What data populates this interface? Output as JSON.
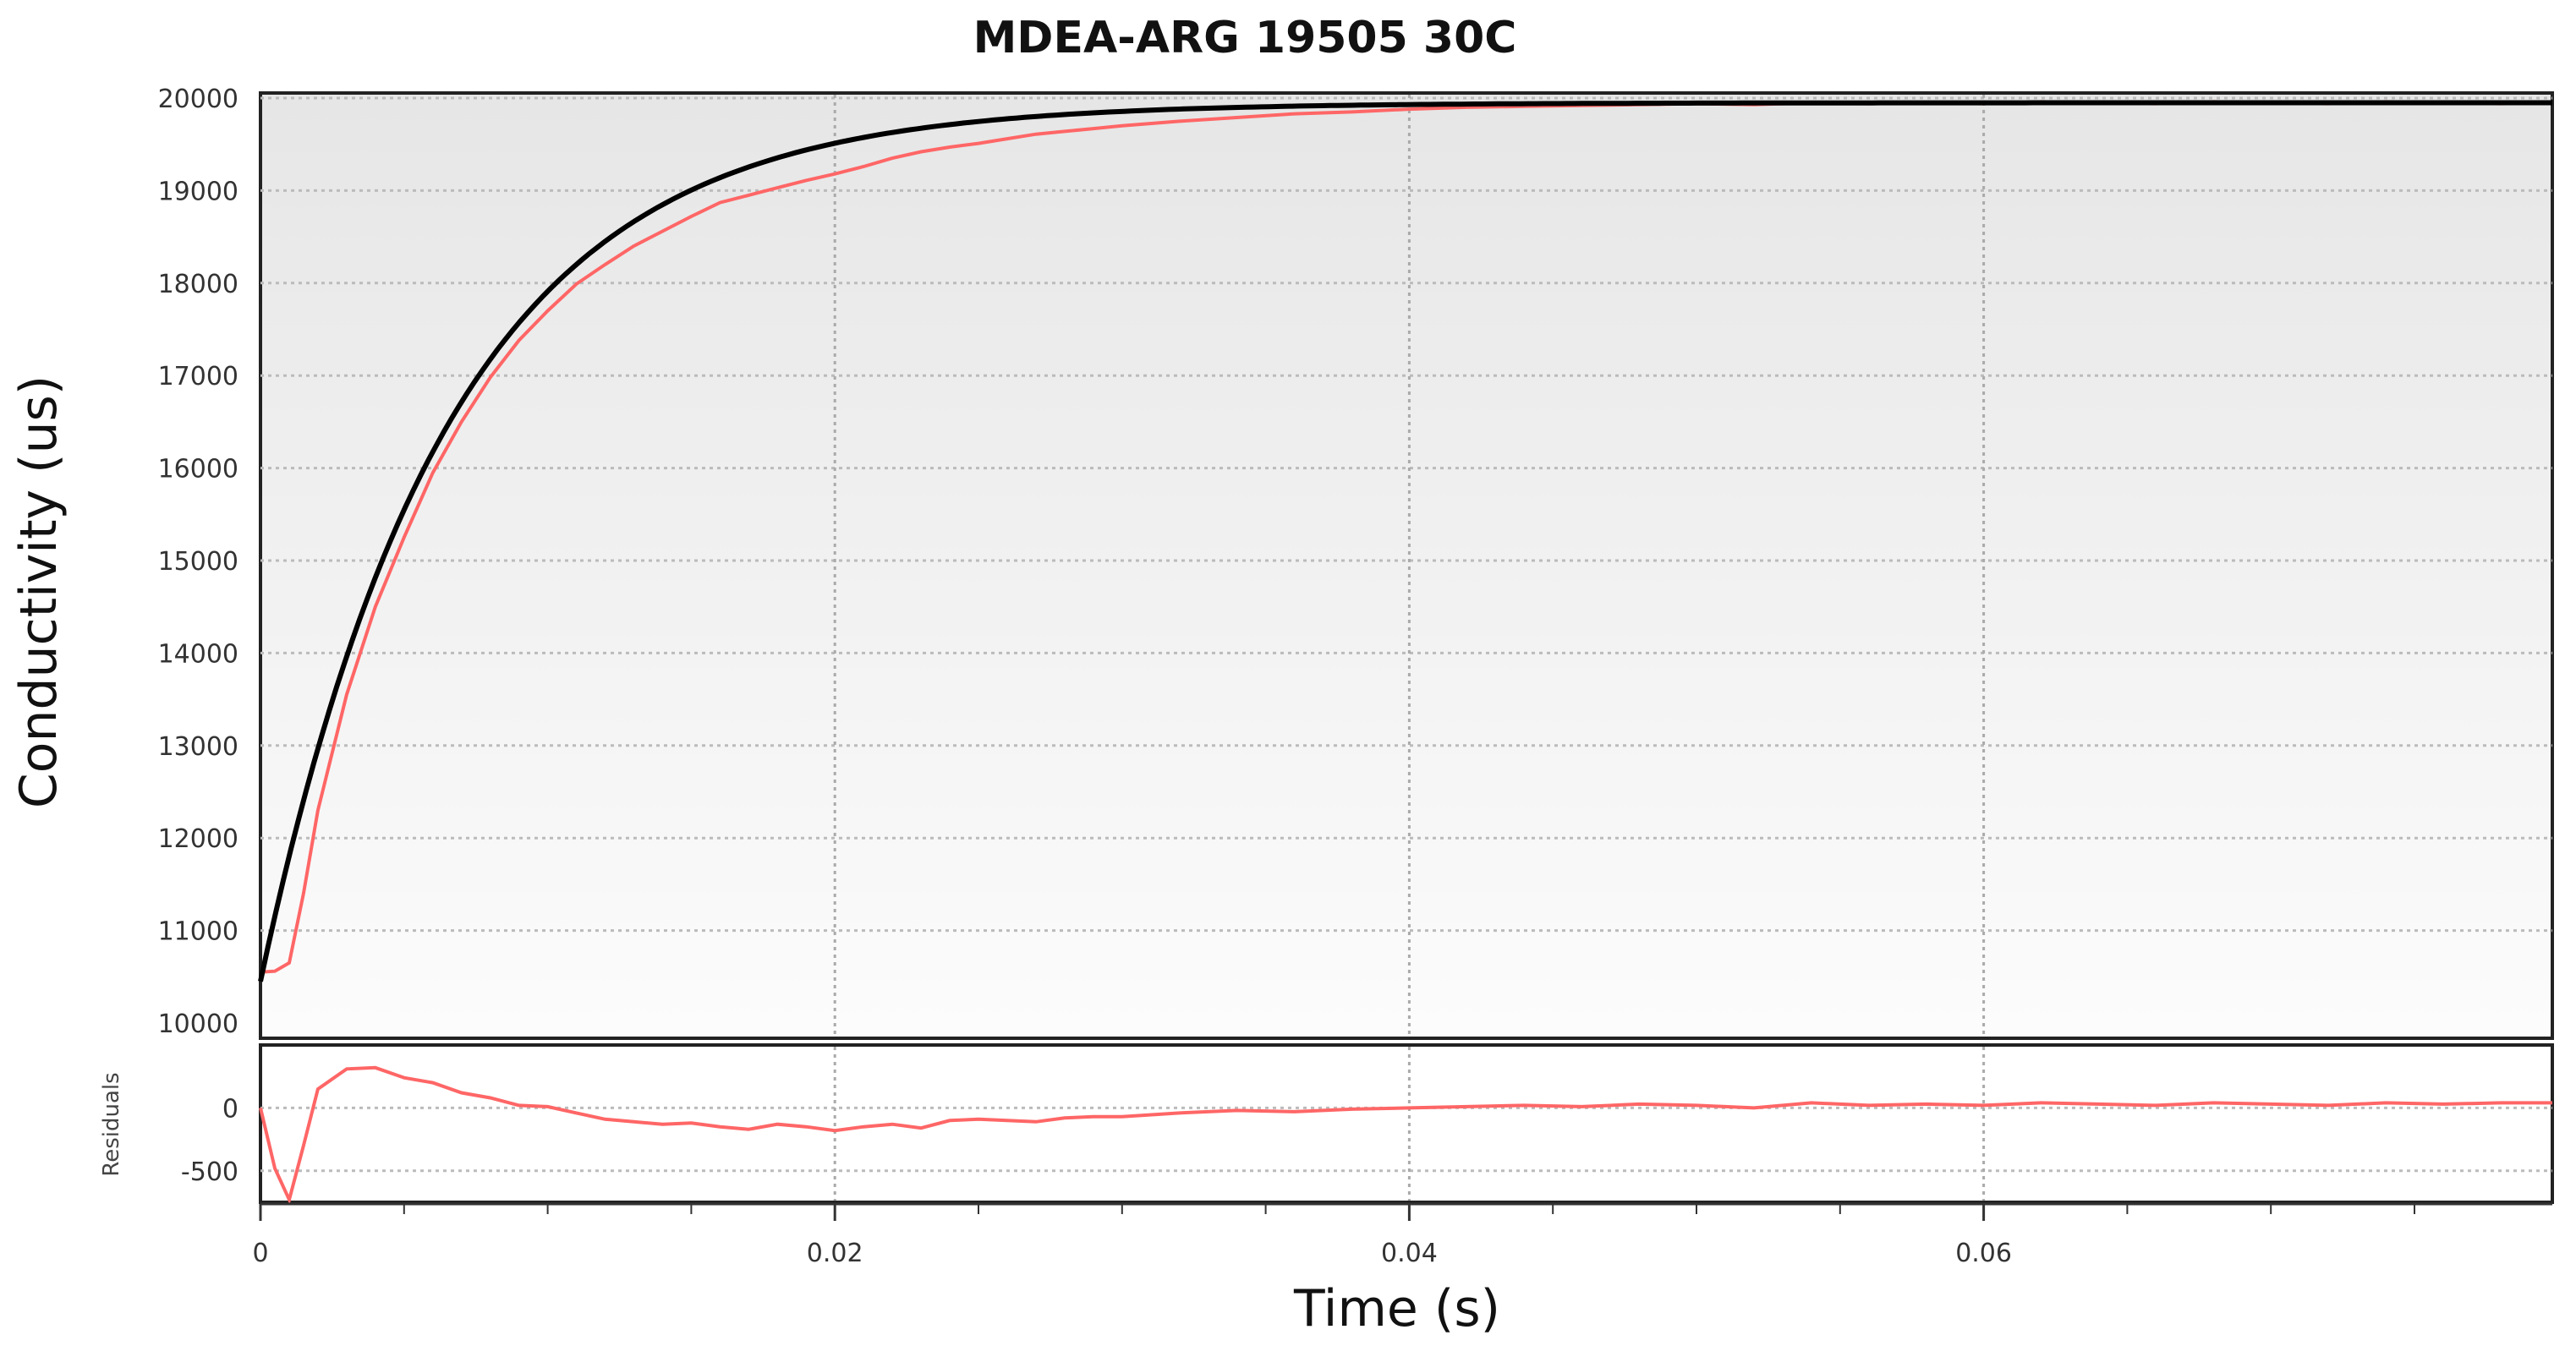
{
  "chart_data": {
    "type": "line",
    "title": "MDEA-ARG 19505 30C",
    "xlabel": "Time (s)",
    "ylabel": "Conductivity (us)",
    "residuals_label": "Residuals",
    "xlim": [
      0,
      0.0798
    ],
    "ylim": [
      10000,
      20000
    ],
    "residuals_ylim": [
      -750,
      500
    ],
    "x_ticks": [
      0,
      0.02,
      0.04,
      0.06
    ],
    "x_tick_labels": [
      "0",
      "0.02",
      "0.04",
      "0.06"
    ],
    "x_minor_ticks": [
      0.005,
      0.01,
      0.015,
      0.025,
      0.03,
      0.035,
      0.045,
      0.05,
      0.055,
      0.065,
      0.07,
      0.075
    ],
    "y_ticks": [
      10000,
      11000,
      12000,
      13000,
      14000,
      15000,
      16000,
      17000,
      18000,
      19000,
      20000
    ],
    "y_tick_labels": [
      "10000",
      "11000",
      "12000",
      "13000",
      "14000",
      "15000",
      "16000",
      "17000",
      "18000",
      "19000",
      "20000"
    ],
    "residuals_ticks": [
      -500,
      0
    ],
    "residuals_tick_labels": [
      "-500",
      "0"
    ],
    "grid": true,
    "series": [
      {
        "color": "#ff6666",
        "x": [
          0,
          0.0005,
          0.001,
          0.0015,
          0.002,
          0.003,
          0.004,
          0.005,
          0.006,
          0.007,
          0.008,
          0.009,
          0.01,
          0.011,
          0.012,
          0.013,
          0.014,
          0.015,
          0.016,
          0.017,
          0.018,
          0.019,
          0.02,
          0.021,
          0.022,
          0.023,
          0.024,
          0.025,
          0.026,
          0.027,
          0.028,
          0.029,
          0.03,
          0.032,
          0.034,
          0.036,
          0.038,
          0.04,
          0.042,
          0.044,
          0.046,
          0.048,
          0.05,
          0.052,
          0.054,
          0.056,
          0.058,
          0.06,
          0.062,
          0.064,
          0.066,
          0.068,
          0.07,
          0.072,
          0.074,
          0.076,
          0.078,
          0.0798
        ],
        "values": [
          10550,
          10560,
          10650,
          11400,
          12300,
          13550,
          14500,
          15250,
          15950,
          16500,
          16980,
          17380,
          17700,
          17990,
          18200,
          18400,
          18560,
          18720,
          18870,
          18950,
          19030,
          19110,
          19180,
          19260,
          19350,
          19420,
          19470,
          19510,
          19560,
          19610,
          19640,
          19670,
          19700,
          19750,
          19790,
          19830,
          19850,
          19880,
          19900,
          19910,
          19920,
          19930,
          19940,
          19930,
          19950,
          19940,
          19950,
          19940,
          19960,
          19950,
          19940,
          19960,
          19950,
          19940,
          19960,
          19950,
          19940,
          19950
        ]
      },
      {
        "color": "#000000",
        "fit": {
          "baseline": 10450,
          "amplitude": 9500,
          "tau": 0.0065
        }
      }
    ],
    "residuals": {
      "color": "#ff6666",
      "x": [
        0,
        0.0005,
        0.001,
        0.0015,
        0.002,
        0.003,
        0.004,
        0.005,
        0.006,
        0.007,
        0.008,
        0.009,
        0.01,
        0.011,
        0.012,
        0.013,
        0.014,
        0.015,
        0.016,
        0.017,
        0.018,
        0.019,
        0.02,
        0.021,
        0.022,
        0.023,
        0.024,
        0.025,
        0.026,
        0.027,
        0.028,
        0.029,
        0.03,
        0.032,
        0.034,
        0.036,
        0.038,
        0.04,
        0.042,
        0.044,
        0.046,
        0.048,
        0.05,
        0.052,
        0.054,
        0.056,
        0.058,
        0.06,
        0.062,
        0.064,
        0.066,
        0.068,
        0.07,
        0.072,
        0.074,
        0.076,
        0.078,
        0.0798
      ],
      "values": [
        0,
        -480,
        -730,
        -300,
        150,
        310,
        320,
        240,
        200,
        120,
        80,
        20,
        10,
        -40,
        -90,
        -110,
        -130,
        -120,
        -150,
        -170,
        -130,
        -150,
        -180,
        -150,
        -130,
        -160,
        -100,
        -90,
        -100,
        -110,
        -80,
        -70,
        -70,
        -40,
        -20,
        -30,
        -10,
        0,
        10,
        20,
        10,
        30,
        20,
        0,
        40,
        20,
        30,
        20,
        40,
        30,
        20,
        40,
        30,
        20,
        40,
        30,
        40,
        40
      ]
    }
  }
}
